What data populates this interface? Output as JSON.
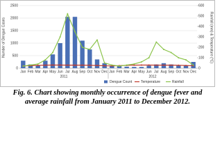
{
  "chart_data": {
    "type": "bar-line",
    "y_label": "Number of Dengue Cases",
    "y2_label": "Rainfall (mm) & Temperature (°C)",
    "categories": [
      "Jan",
      "Feb",
      "Mar",
      "Apr",
      "May",
      "Jun",
      "Jul",
      "Aug",
      "Sep",
      "Oct",
      "Nov",
      "Dec",
      "Jan",
      "Feb",
      "Mar",
      "Apr",
      "May",
      "Jun",
      "Jul",
      "Aug",
      "Sep",
      "Oct",
      "Nov",
      "Dec"
    ],
    "group_labels": [
      "2011",
      "2012"
    ],
    "ylim": [
      0,
      2500
    ],
    "yticks": [
      0,
      500,
      1000,
      1500,
      2000,
      2500
    ],
    "y2lim": [
      0,
      600
    ],
    "y2ticks": [
      0,
      100,
      200,
      300,
      400,
      500,
      600
    ],
    "grid": true,
    "series": [
      {
        "name": "Dengue Count",
        "kind": "bar",
        "color": "#4a6fb5",
        "values": [
          300,
          150,
          100,
          300,
          550,
          1000,
          2050,
          2050,
          1100,
          750,
          350,
          200,
          100,
          80,
          60,
          50,
          50,
          100,
          150,
          200,
          150,
          100,
          100,
          250
        ]
      },
      {
        "name": "Temperature",
        "kind": "line",
        "axis": "y2",
        "color": "#c0392b",
        "values": [
          22,
          24,
          27,
          29,
          30,
          30,
          29,
          29,
          29,
          28,
          26,
          23,
          22,
          24,
          27,
          29,
          30,
          30,
          29,
          29,
          29,
          28,
          26,
          23
        ]
      },
      {
        "name": "Rainfall",
        "kind": "line",
        "axis": "y2",
        "color": "#8bc34a",
        "values": [
          20,
          30,
          40,
          80,
          150,
          300,
          520,
          350,
          200,
          180,
          270,
          50,
          30,
          20,
          30,
          40,
          60,
          100,
          250,
          180,
          150,
          100,
          80,
          30
        ]
      }
    ],
    "caption": "Fig. 6. Chart showing monthly occurrence of dengue fever and average rainfall from January 2011 to December 2012."
  }
}
